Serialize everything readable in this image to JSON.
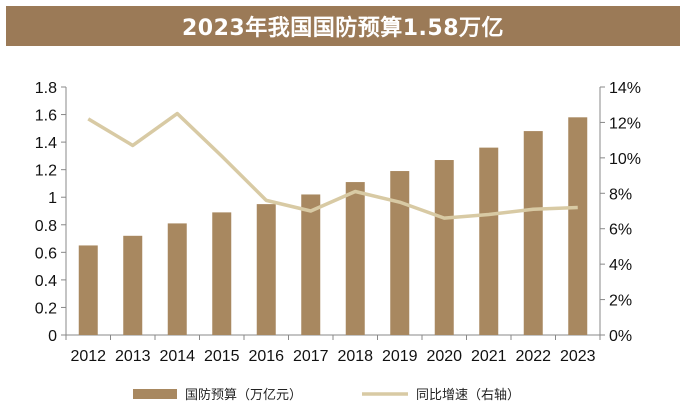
{
  "title": "2023年我国国防预算1.58万亿",
  "colors": {
    "bar": "#a88860",
    "line": "#d8caa4",
    "title_band": "#9b7a57"
  },
  "chart_data": {
    "type": "bar",
    "categories": [
      "2012",
      "2013",
      "2014",
      "2015",
      "2016",
      "2017",
      "2018",
      "2019",
      "2020",
      "2021",
      "2022",
      "2023"
    ],
    "series": [
      {
        "name": "国防预算（万亿元）",
        "type": "bar",
        "axis": "left",
        "values": [
          0.65,
          0.72,
          0.81,
          0.89,
          0.95,
          1.02,
          1.11,
          1.19,
          1.27,
          1.36,
          1.48,
          1.58
        ]
      },
      {
        "name": "同比增速（右轴）",
        "type": "line",
        "axis": "right",
        "values": [
          12.2,
          10.7,
          12.5,
          10.1,
          7.6,
          7.0,
          8.1,
          7.5,
          6.6,
          6.8,
          7.1,
          7.2
        ]
      }
    ],
    "left_axis": {
      "ylim": [
        0,
        1.8
      ],
      "ticks": [
        "0",
        "0.2",
        "0.4",
        "0.6",
        "0.8",
        "1",
        "1.2",
        "1.4",
        "1.6",
        "1.8"
      ]
    },
    "right_axis": {
      "ylim": [
        0,
        14
      ],
      "ticks": [
        "0%",
        "2%",
        "4%",
        "6%",
        "8%",
        "10%",
        "12%",
        "14%"
      ]
    },
    "grid": false,
    "legend": "bottom"
  }
}
